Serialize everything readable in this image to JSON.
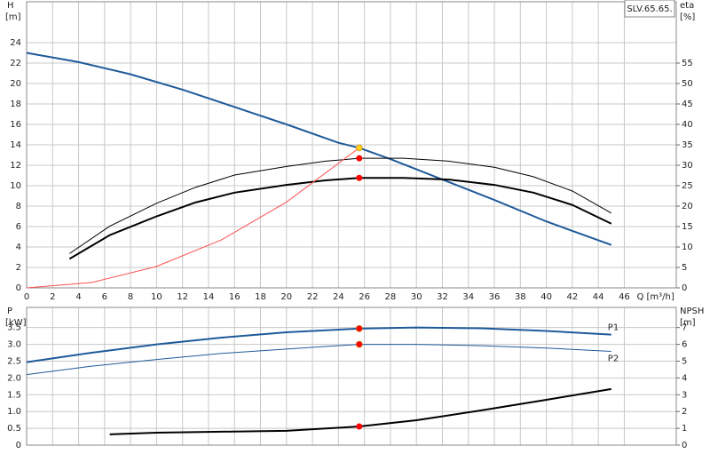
{
  "chart_data": [
    {
      "type": "line",
      "title": "SLV.65.65.",
      "ylabel": "H",
      "yunit": "[m]",
      "y2label": "eta",
      "y2unit": "[%]",
      "xlabel": "Q [m³/h]",
      "xlim": [
        0,
        50
      ],
      "xticks": [
        0,
        2,
        4,
        6,
        8,
        10,
        12,
        14,
        16,
        18,
        20,
        22,
        24,
        26,
        28,
        30,
        32,
        34,
        36,
        38,
        40,
        42,
        44,
        46
      ],
      "ylim": [
        0,
        28
      ],
      "yticks": [
        0,
        2,
        4,
        6,
        8,
        10,
        12,
        14,
        16,
        18,
        20,
        22,
        24
      ],
      "y2lim": [
        0,
        70
      ],
      "y2ticks": [
        0,
        5,
        10,
        15,
        20,
        25,
        30,
        35,
        40,
        45,
        50,
        55
      ],
      "grid": true,
      "series": [
        {
          "color": "#1f5a9a",
          "width": 2,
          "x": [
            0,
            4,
            8,
            12,
            16,
            20,
            24,
            25.6,
            28,
            32,
            36,
            40,
            45
          ],
          "values": [
            23,
            22.1,
            20.9,
            19.4,
            17.7,
            16.0,
            14.2,
            13.7,
            12.6,
            10.6,
            8.6,
            6.5,
            4.2
          ]
        },
        {
          "color": "#000000",
          "width": 1,
          "axis": "y2",
          "x": [
            3.3,
            6.4,
            10,
            13,
            16,
            20,
            23,
            25.6,
            29,
            32.5,
            36,
            39,
            42,
            45
          ],
          "values": [
            8.4,
            15.1,
            20.7,
            24.6,
            27.6,
            29.7,
            31,
            31.7,
            31.7,
            31,
            29.5,
            27.2,
            23.7,
            18.3
          ]
        },
        {
          "color": "#000000",
          "width": 2,
          "axis": "y2",
          "x": [
            3.3,
            6.4,
            10,
            13,
            16,
            20,
            23,
            25.6,
            29,
            32.5,
            36,
            39,
            42,
            45
          ],
          "values": [
            7.1,
            12.9,
            17.5,
            20.9,
            23.3,
            25.2,
            26.3,
            26.9,
            26.9,
            26.5,
            25.2,
            23.3,
            20.3,
            15.7
          ]
        },
        {
          "color": "#ff5050",
          "width": 1,
          "x": [
            0,
            5,
            10,
            15,
            20,
            25.6
          ],
          "values": [
            0,
            0.52,
            2.1,
            4.7,
            8.4,
            13.7
          ]
        }
      ],
      "markers": [
        {
          "x": 25.6,
          "y": 13.7,
          "color": "#ffd21f"
        },
        {
          "x": 25.6,
          "y": 31.7,
          "axis": "y2",
          "color": "#ff0000"
        },
        {
          "x": 25.6,
          "y": 26.9,
          "axis": "y2",
          "color": "#ff0000"
        }
      ]
    },
    {
      "type": "line",
      "ylabel": "P",
      "yunit": "[kW]",
      "y2label": "NPSH",
      "y2unit": "[m]",
      "xlim": [
        0,
        50
      ],
      "ylim": [
        0,
        4.1
      ],
      "yticks": [
        0,
        0.5,
        {
          "value": 1,
          "label": "1.0"
        },
        1.5,
        {
          "value": 2,
          "label": "2.0"
        },
        2.5,
        {
          "value": 3,
          "label": "3.0"
        },
        3.5
      ],
      "y2lim": [
        0,
        8.2
      ],
      "y2ticks": [
        0,
        1,
        2,
        3,
        4,
        5,
        6,
        7
      ],
      "grid": true,
      "series": [
        {
          "name": "P1",
          "color": "#1f5a9a",
          "width": 2,
          "x": [
            0,
            5,
            10,
            15,
            20,
            25.6,
            30,
            35,
            40,
            45
          ],
          "values": [
            2.47,
            2.75,
            3.0,
            3.2,
            3.36,
            3.47,
            3.5,
            3.48,
            3.4,
            3.29
          ]
        },
        {
          "name": "P2",
          "color": "#1f5a9a",
          "width": 1,
          "x": [
            0,
            5,
            10,
            15,
            20,
            25.6,
            30,
            35,
            40,
            45
          ],
          "values": [
            2.1,
            2.35,
            2.55,
            2.73,
            2.86,
            3.0,
            3.0,
            2.96,
            2.89,
            2.79
          ]
        },
        {
          "color": "#000000",
          "width": 2,
          "axis": "y2",
          "x": [
            6.4,
            10,
            15,
            20,
            25.6,
            30,
            35,
            40,
            45
          ],
          "values": [
            0.64,
            0.74,
            0.8,
            0.85,
            1.11,
            1.48,
            2.07,
            2.7,
            3.34
          ]
        }
      ],
      "markers": [
        {
          "x": 25.6,
          "y": 3.47,
          "color": "#ff0000"
        },
        {
          "x": 25.6,
          "y": 3.0,
          "color": "#ff0000"
        },
        {
          "x": 25.6,
          "y": 1.11,
          "axis": "y2",
          "color": "#ff0000"
        }
      ]
    }
  ]
}
